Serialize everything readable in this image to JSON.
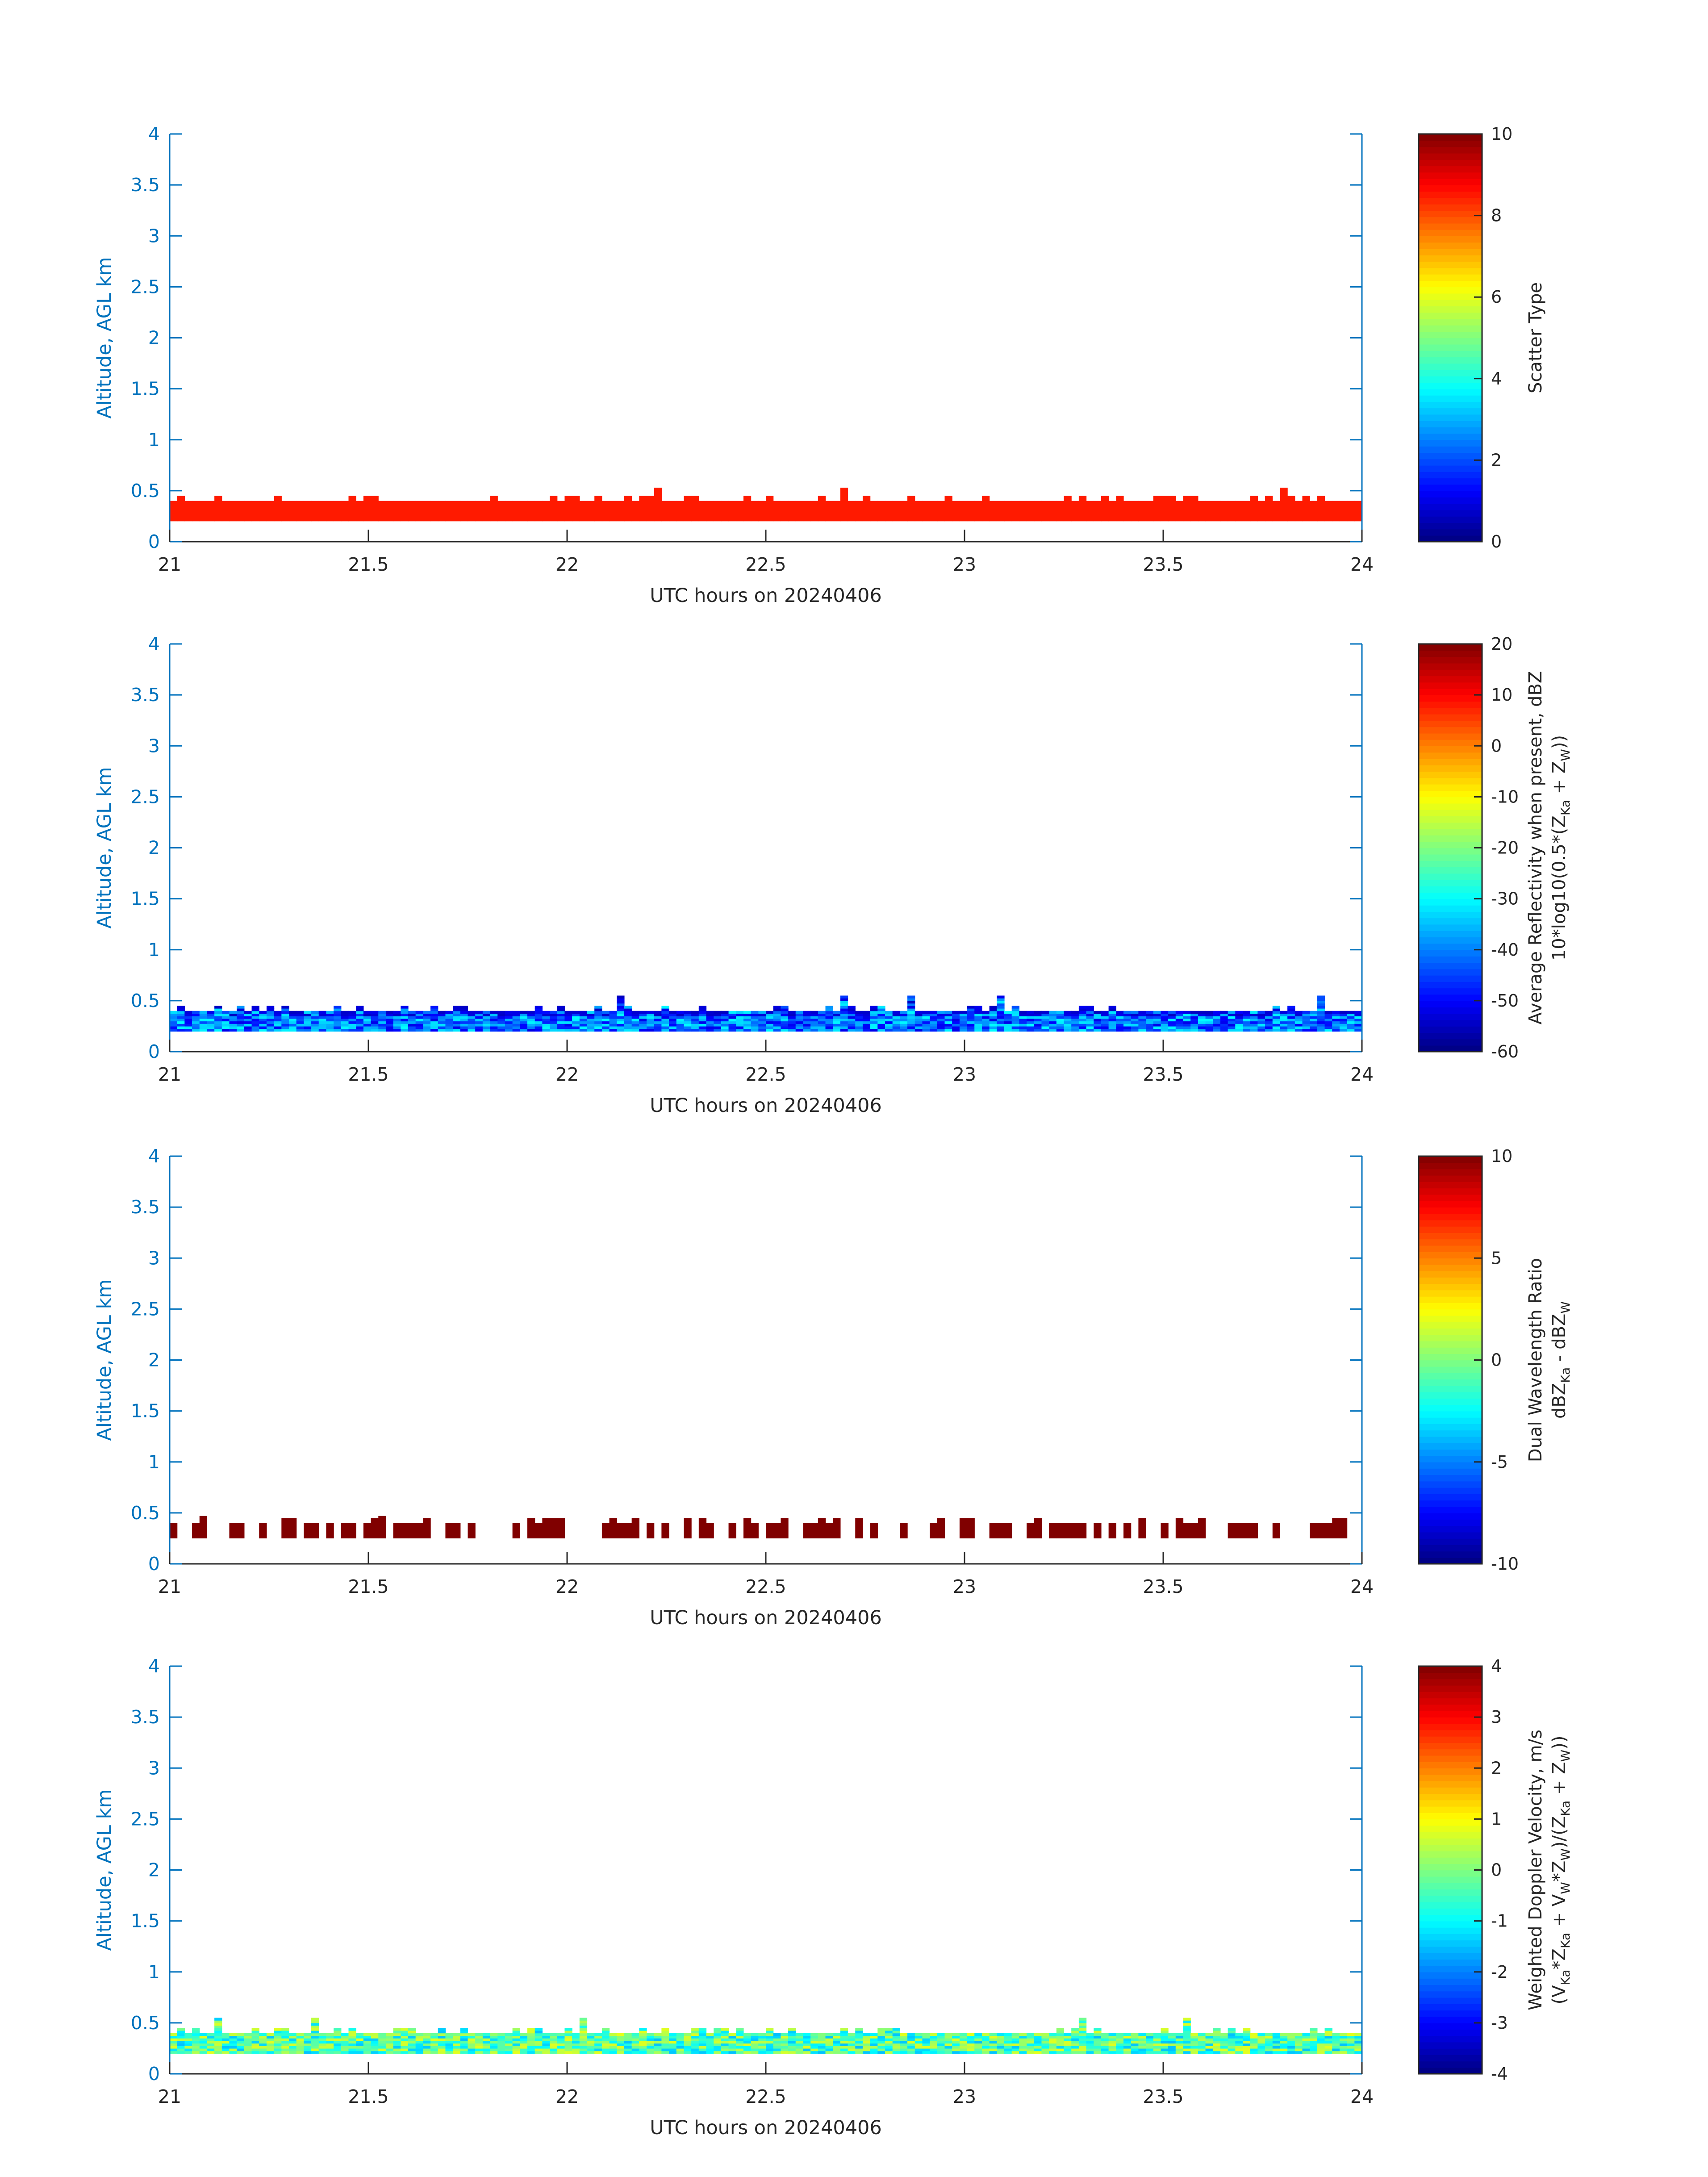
{
  "chart_data": [
    {
      "type": "heatmap",
      "x_range": [
        21,
        24
      ],
      "ylim": [
        0,
        4
      ],
      "xticks": [
        "21",
        "21.5",
        "22",
        "22.5",
        "23",
        "23.5",
        "24"
      ],
      "yticks": [
        "0",
        "0.5",
        "1",
        "1.5",
        "2",
        "2.5",
        "3",
        "3.5",
        "4"
      ],
      "xlabel": "UTC hours on 20240406",
      "ylabel": "Altitude, AGL km",
      "colorbar": {
        "range": [
          0,
          10
        ],
        "ticks": [
          "0",
          "2",
          "4",
          "6",
          "8",
          "10"
        ],
        "label_lines": [
          "Scatter Type"
        ]
      },
      "echo_layer": {
        "base_km": 0.2,
        "top_km_typical": 0.4,
        "top_km_max": 0.53,
        "field": "constant",
        "value": 8.5
      }
    },
    {
      "type": "heatmap",
      "x_range": [
        21,
        24
      ],
      "ylim": [
        0,
        4
      ],
      "xticks": [
        "21",
        "21.5",
        "22",
        "22.5",
        "23",
        "23.5",
        "24"
      ],
      "yticks": [
        "0",
        "0.5",
        "1",
        "1.5",
        "2",
        "2.5",
        "3",
        "3.5",
        "4"
      ],
      "xlabel": "UTC hours on 20240406",
      "ylabel": "Altitude, AGL km",
      "colorbar": {
        "range": [
          -60,
          20
        ],
        "ticks": [
          "-60",
          "-50",
          "-40",
          "-30",
          "-20",
          "-10",
          "0",
          "10",
          "20"
        ],
        "label_lines": [
          "Average Reflectivity when present, dBZ",
          "10*log10(0.5*(Z",
          "Ka",
          " + Z",
          "W",
          "))"
        ]
      },
      "echo_layer": {
        "base_km": 0.2,
        "top_km_typical": 0.4,
        "top_km_max": 0.53,
        "field": "reflectivity",
        "value_range": [
          -52,
          -30
        ]
      }
    },
    {
      "type": "heatmap",
      "x_range": [
        21,
        24
      ],
      "ylim": [
        0,
        4
      ],
      "xticks": [
        "21",
        "21.5",
        "22",
        "22.5",
        "23",
        "23.5",
        "24"
      ],
      "yticks": [
        "0",
        "0.5",
        "1",
        "1.5",
        "2",
        "2.5",
        "3",
        "3.5",
        "4"
      ],
      "xlabel": "UTC hours on 20240406",
      "ylabel": "Altitude, AGL km",
      "colorbar": {
        "range": [
          -10,
          10
        ],
        "ticks": [
          "-10",
          "-5",
          "0",
          "5",
          "10"
        ],
        "label_lines": [
          "Dual Wavelength Ratio",
          "dBZ",
          "Ka",
          " - dBZ",
          "W"
        ]
      },
      "echo_layer": {
        "base_km": 0.25,
        "top_km_typical": 0.4,
        "top_km_max": 0.47,
        "field": "dwr",
        "value": 10
      }
    },
    {
      "type": "heatmap",
      "x_range": [
        21,
        24
      ],
      "ylim": [
        0,
        4
      ],
      "xticks": [
        "21",
        "21.5",
        "22",
        "22.5",
        "23",
        "23.5",
        "24"
      ],
      "yticks": [
        "0",
        "0.5",
        "1",
        "1.5",
        "2",
        "2.5",
        "3",
        "3.5",
        "4"
      ],
      "xlabel": "UTC hours on 20240406",
      "ylabel": "Altitude, AGL km",
      "colorbar": {
        "range": [
          -4,
          4
        ],
        "ticks": [
          "-4",
          "-3",
          "-2",
          "-1",
          "0",
          "1",
          "2",
          "3",
          "4"
        ],
        "label_lines": [
          "Weighted Doppler Velocity, m/s",
          "(V",
          "Ka",
          "*Z",
          "Ka",
          " + V",
          "W",
          "*Z",
          "W",
          ")/(Z",
          "Ka",
          " + Z",
          "W",
          "))"
        ]
      },
      "echo_layer": {
        "base_km": 0.2,
        "top_km_typical": 0.4,
        "top_km_max": 0.53,
        "field": "velocity",
        "value_range": [
          -1.5,
          0.8
        ]
      }
    }
  ]
}
